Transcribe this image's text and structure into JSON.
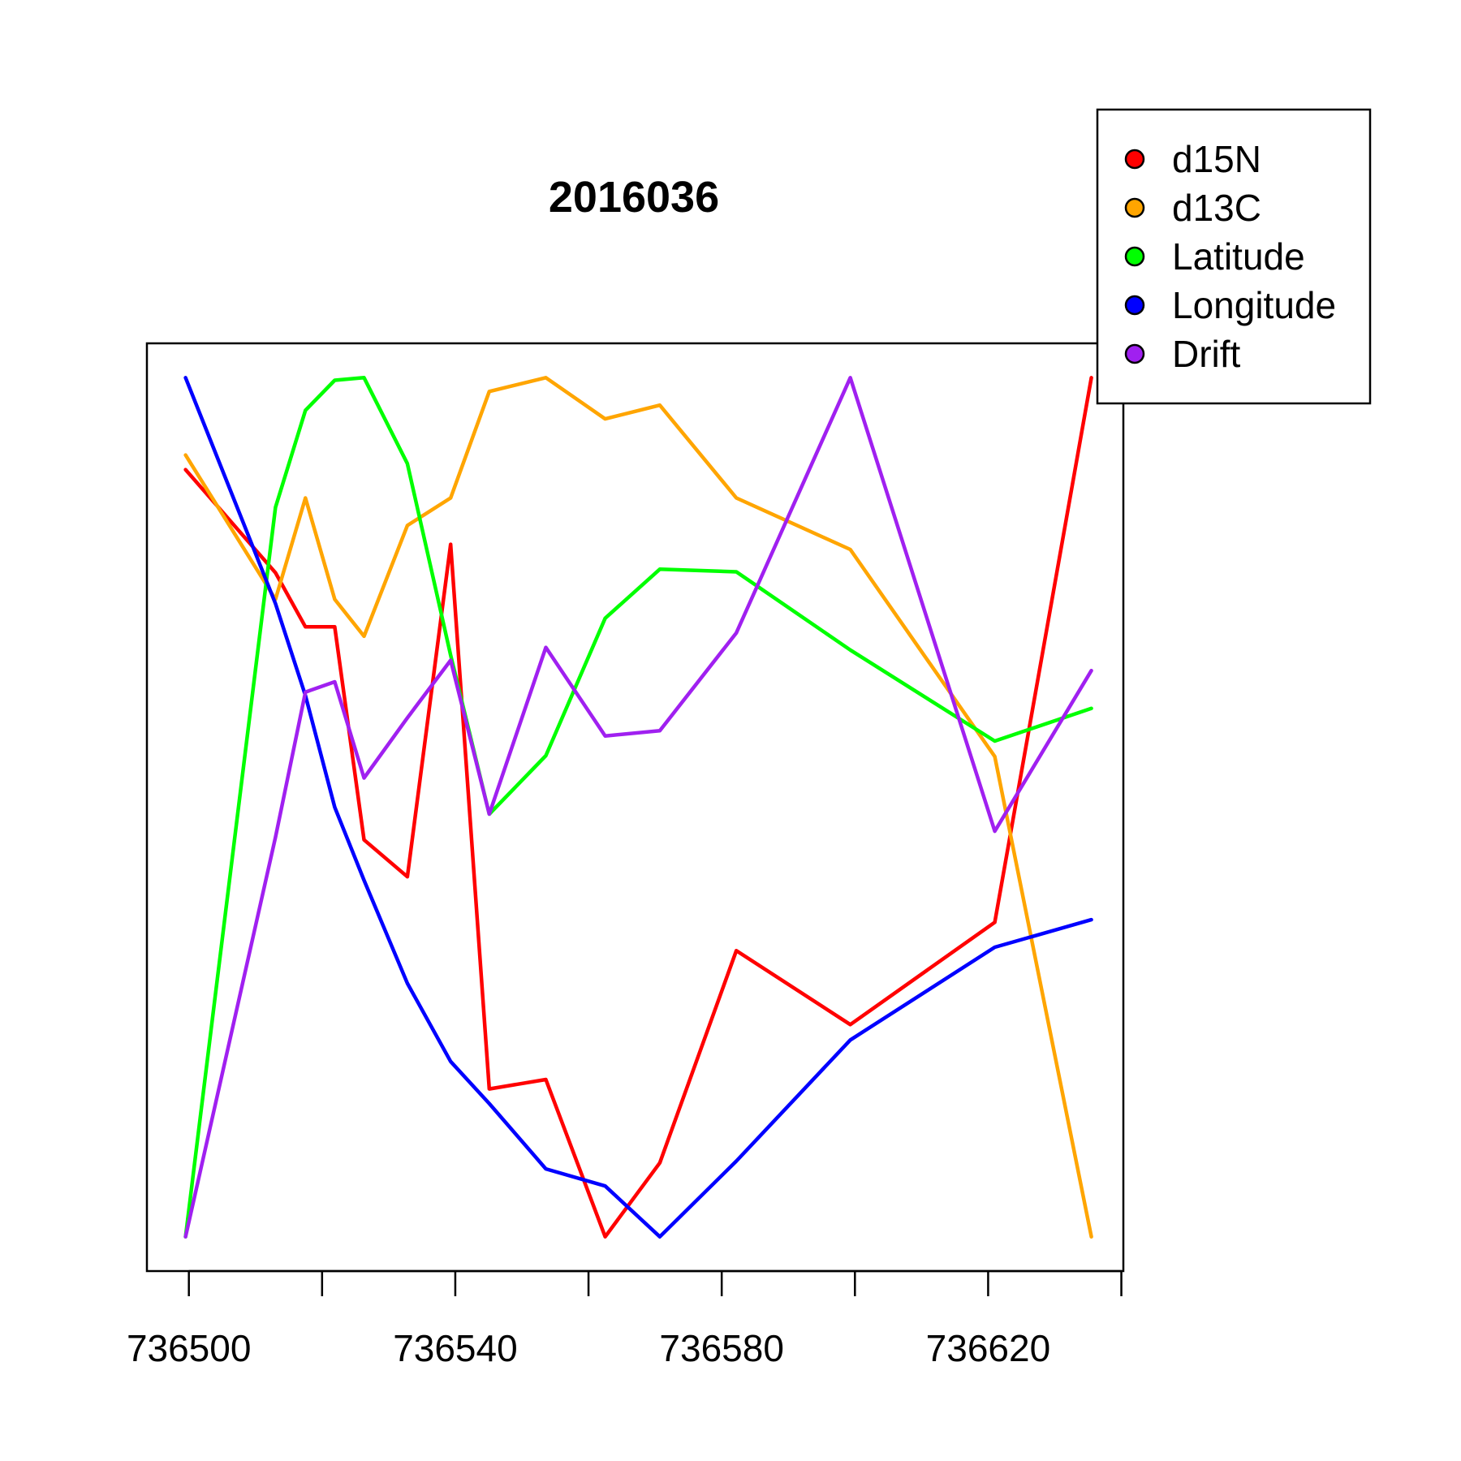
{
  "chart_data": {
    "type": "line",
    "title": "2016036",
    "xlabel": "",
    "ylabel": "",
    "xlim": [
      736493.7,
      736640.3
    ],
    "x_ticks": [
      736500,
      736520,
      736540,
      736560,
      736580,
      736600,
      736620,
      736640
    ],
    "x_tick_labels": [
      "736500",
      "736540",
      "736580",
      "736620"
    ],
    "y_axis_shown": false,
    "ylim": [
      -0.04,
      1.04
    ],
    "grid": false,
    "legend_position": "top-right",
    "series": [
      {
        "name": "d15N",
        "color": "#FF0000",
        "x": [
          736499.5,
          736513,
          736517.5,
          736521.9,
          736526.3,
          736532.8,
          736539.3,
          736545.1,
          736553.6,
          736562.5,
          736570.7,
          736582.2,
          736599.3,
          736621,
          736635.5
        ],
        "y": [
          0.893,
          0.773,
          0.71,
          0.71,
          0.462,
          0.419,
          0.806,
          0.172,
          0.183,
          0,
          0.086,
          0.333,
          0.247,
          0.366,
          1
        ]
      },
      {
        "name": "d13C",
        "color": "#FFA500",
        "x": [
          736499.5,
          736513,
          736517.5,
          736521.9,
          736526.3,
          736532.8,
          736539.3,
          736545.1,
          736553.6,
          736562.5,
          736570.7,
          736582.2,
          736599.3,
          736621,
          736635.5
        ],
        "y": [
          0.91,
          0.742,
          0.86,
          0.742,
          0.699,
          0.828,
          0.86,
          0.984,
          1,
          0.952,
          0.968,
          0.86,
          0.8,
          0.559,
          0
        ]
      },
      {
        "name": "Latitude",
        "color": "#00FF00",
        "x": [
          736499.5,
          736513,
          736517.5,
          736521.9,
          736526.3,
          736532.8,
          736539.3,
          736545.1,
          736553.6,
          736562.5,
          736570.7,
          736582.2,
          736599.3,
          736621,
          736635.5
        ],
        "y": [
          0,
          0.849,
          0.962,
          0.997,
          1,
          0.9,
          0.677,
          0.492,
          0.56,
          0.72,
          0.777,
          0.774,
          0.683,
          0.577,
          0.615
        ]
      },
      {
        "name": "Longitude",
        "color": "#0000FF",
        "x": [
          736499.5,
          736513,
          736517.5,
          736521.9,
          736526.3,
          736532.8,
          736539.3,
          736545.1,
          736553.6,
          736562.5,
          736570.7,
          736582.2,
          736599.3,
          736621,
          736635.5
        ],
        "y": [
          1,
          0.737,
          0.63,
          0.5,
          0.415,
          0.295,
          0.204,
          0.155,
          0.079,
          0.059,
          0,
          0.088,
          0.229,
          0.337,
          0.369
        ]
      },
      {
        "name": "Drift",
        "color": "#A020F0",
        "x": [
          736499.5,
          736513,
          736517.5,
          736521.9,
          736526.3,
          736532.8,
          736539.3,
          736545.1,
          736553.6,
          736562.5,
          736570.7,
          736582.2,
          736599.3,
          736621,
          736635.5
        ],
        "y": [
          0,
          0.465,
          0.634,
          0.646,
          0.534,
          0.604,
          0.671,
          0.492,
          0.686,
          0.583,
          0.589,
          0.703,
          1,
          0.472,
          0.659
        ]
      }
    ]
  }
}
